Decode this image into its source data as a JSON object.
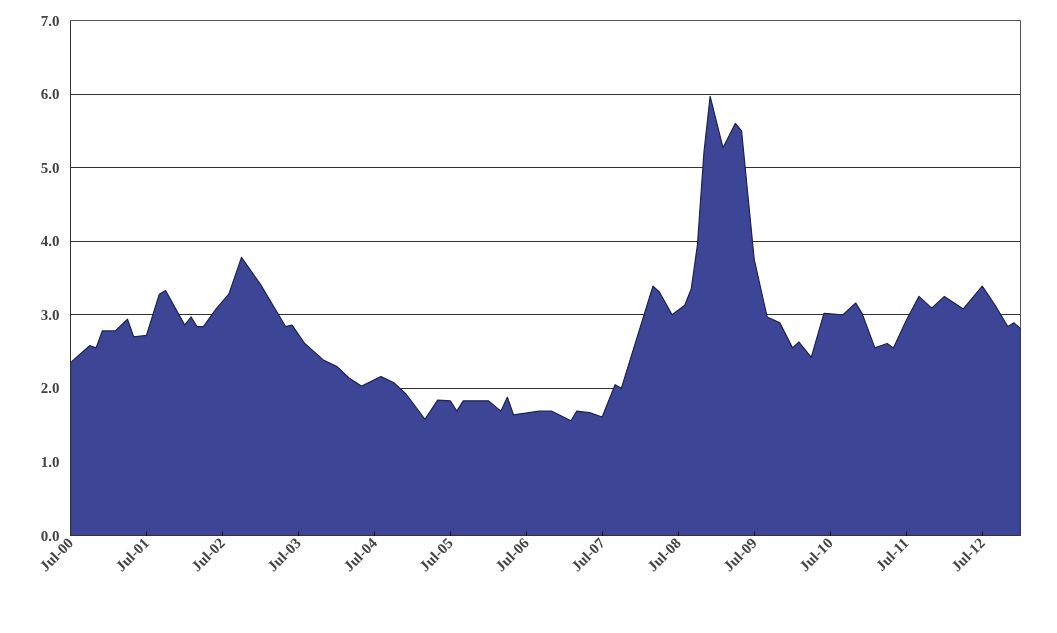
{
  "chart_data": {
    "type": "area",
    "x": [
      "2000-07",
      "2000-10",
      "2000-11",
      "2000-12",
      "2001-02",
      "2001-04",
      "2001-05",
      "2001-07",
      "2001-09",
      "2001-10",
      "2002-01",
      "2002-02",
      "2002-03",
      "2002-04",
      "2002-06",
      "2002-08",
      "2002-10",
      "2003-01",
      "2003-03",
      "2003-05",
      "2003-06",
      "2003-08",
      "2003-11",
      "2004-01",
      "2004-03",
      "2004-05",
      "2004-08",
      "2004-10",
      "2004-12",
      "2005-03",
      "2005-05",
      "2005-07",
      "2005-08",
      "2005-09",
      "2006-01",
      "2006-03",
      "2006-04",
      "2006-05",
      "2006-09",
      "2006-11",
      "2007-02",
      "2007-03",
      "2007-05",
      "2007-07",
      "2007-09",
      "2007-10",
      "2008-03",
      "2008-04",
      "2008-06",
      "2008-08",
      "2008-09",
      "2008-10",
      "2008-11",
      "2008-12",
      "2009-02",
      "2009-04",
      "2009-05",
      "2009-07",
      "2009-09",
      "2009-11",
      "2010-01",
      "2010-02",
      "2010-04",
      "2010-06",
      "2010-09",
      "2010-11",
      "2010-12",
      "2011-02",
      "2011-04",
      "2011-05",
      "2011-07",
      "2011-09",
      "2011-11",
      "2012-01",
      "2012-04",
      "2012-07",
      "2012-09",
      "2012-11",
      "2012-12",
      "2013-01"
    ],
    "series": [
      {
        "color": "#3d4596",
        "values": [
          2.35,
          2.58,
          2.55,
          2.78,
          2.78,
          2.94,
          2.7,
          2.72,
          3.28,
          3.33,
          2.86,
          2.97,
          2.84,
          2.84,
          3.08,
          3.28,
          3.78,
          3.41,
          3.13,
          2.84,
          2.86,
          2.61,
          2.38,
          2.3,
          2.14,
          2.03,
          2.16,
          2.08,
          1.92,
          1.58,
          1.84,
          1.83,
          1.69,
          1.83,
          1.83,
          1.69,
          1.88,
          1.64,
          1.69,
          1.69,
          1.56,
          1.69,
          1.67,
          1.61,
          2.05,
          2.0,
          3.39,
          3.31,
          3.0,
          3.13,
          3.35,
          3.95,
          5.2,
          5.97,
          5.27,
          5.6,
          5.5,
          3.75,
          2.97,
          2.89,
          2.55,
          2.63,
          2.42,
          3.02,
          3.0,
          3.16,
          3.02,
          2.55,
          2.61,
          2.55,
          2.92,
          3.25,
          3.09,
          3.25,
          3.08,
          3.39,
          3.13,
          2.84,
          2.89,
          2.81
        ]
      }
    ],
    "xlim": [
      "2000-07",
      "2013-01"
    ],
    "xticks": [
      {
        "value": "2000-07",
        "label": "Jul-00"
      },
      {
        "value": "2001-07",
        "label": "Jul-01"
      },
      {
        "value": "2002-07",
        "label": "Jul-02"
      },
      {
        "value": "2003-07",
        "label": "Jul-03"
      },
      {
        "value": "2004-07",
        "label": "Jul-04"
      },
      {
        "value": "2005-07",
        "label": "Jul-05"
      },
      {
        "value": "2006-07",
        "label": "Jul-06"
      },
      {
        "value": "2007-07",
        "label": "Jul-07"
      },
      {
        "value": "2008-07",
        "label": "Jul-08"
      },
      {
        "value": "2009-07",
        "label": "Jul-09"
      },
      {
        "value": "2010-07",
        "label": "Jul-10"
      },
      {
        "value": "2011-07",
        "label": "Jul-11"
      },
      {
        "value": "2012-07",
        "label": "Jul-12"
      }
    ],
    "ylim": [
      0,
      7
    ],
    "yticks": [
      {
        "value": 0,
        "label": "0.0"
      },
      {
        "value": 1,
        "label": "1.0"
      },
      {
        "value": 2,
        "label": "2.0"
      },
      {
        "value": 3,
        "label": "3.0"
      },
      {
        "value": 4,
        "label": "4.0"
      },
      {
        "value": 5,
        "label": "5.0"
      },
      {
        "value": 6,
        "label": "6.0"
      },
      {
        "value": 7,
        "label": "7.0"
      }
    ],
    "grid": "y"
  }
}
